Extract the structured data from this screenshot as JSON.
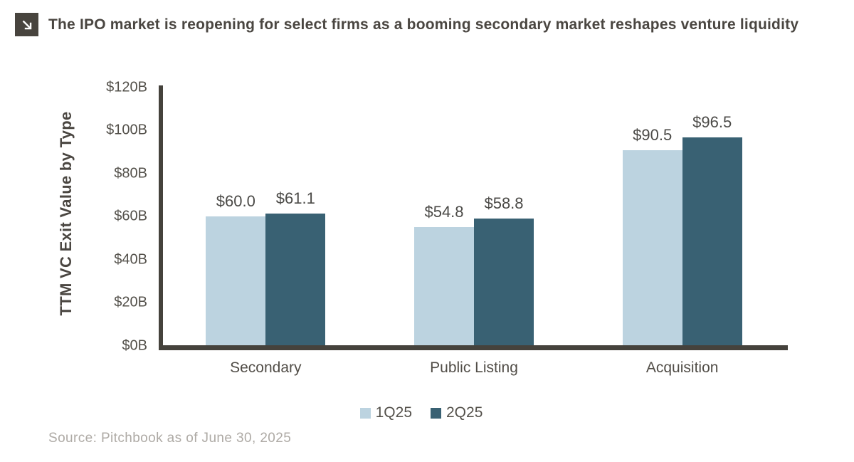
{
  "header": {
    "title": "The IPO market is reopening for select firms as a booming secondary market reshapes venture liquidity",
    "icon": "arrow-down-right"
  },
  "chart_data": {
    "type": "bar",
    "title": "The IPO market is reopening for select firms as a booming secondary market reshapes venture liquidity",
    "categories": [
      "Secondary",
      "Public Listing",
      "Acquisition"
    ],
    "series": [
      {
        "name": "1Q25",
        "color": "#bcd3e0",
        "values": [
          60.0,
          54.8,
          90.5
        ],
        "value_labels": [
          "$60.0",
          "$54.8",
          "$90.5"
        ]
      },
      {
        "name": "2Q25",
        "color": "#396173",
        "values": [
          61.1,
          58.8,
          96.5
        ],
        "value_labels": [
          "$61.1",
          "$58.8",
          "$96.5"
        ]
      }
    ],
    "xlabel": "",
    "ylabel": "TTM VC Exit Value by Type",
    "ylim": [
      0,
      120
    ],
    "yticks": [
      {
        "label": "$120B",
        "value": 120
      },
      {
        "label": "$100B",
        "value": 100
      },
      {
        "label": "$80B",
        "value": 80
      },
      {
        "label": "$60B",
        "value": 60
      },
      {
        "label": "$40B",
        "value": 40
      },
      {
        "label": "$20B",
        "value": 20
      },
      {
        "label": "$0B",
        "value": 0
      }
    ],
    "grid": false,
    "legend_position": "bottom",
    "bar_value_labels_shown": true
  },
  "colors": {
    "series_1q25": "#bcd3e0",
    "series_2q25": "#396173",
    "axis": "#45423c",
    "title_text": "#4a4641",
    "tick_text": "#53504a",
    "source_text": "#aeaaa5",
    "icon_bg": "#48443e"
  },
  "source": "Source: Pitchbook as of June 30, 2025"
}
